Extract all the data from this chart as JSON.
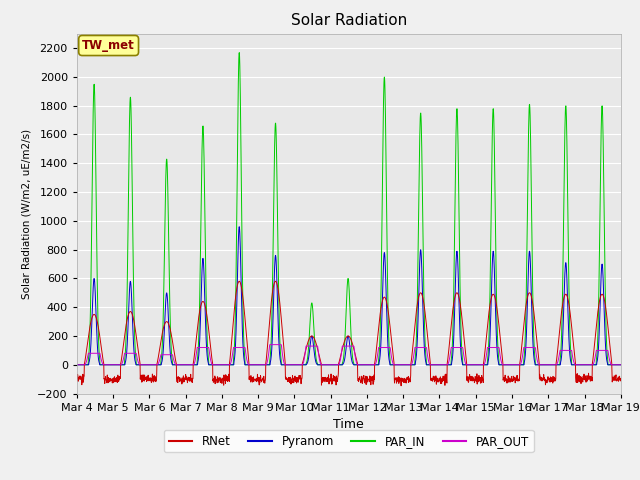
{
  "title": "Solar Radiation",
  "ylabel": "Solar Radiation (W/m2, uE/m2/s)",
  "xlabel": "Time",
  "ylim": [
    -200,
    2300
  ],
  "yticks": [
    -200,
    0,
    200,
    400,
    600,
    800,
    1000,
    1200,
    1400,
    1600,
    1800,
    2000,
    2200
  ],
  "station_label": "TW_met",
  "station_label_color": "#8B0000",
  "station_label_bg": "#FFFF99",
  "station_label_border": "#8B8000",
  "bg_color": "#E8E8E8",
  "grid_color": "#FFFFFF",
  "fig_bg_color": "#F0F0F0",
  "legend_items": [
    {
      "label": "RNet",
      "color": "#CC0000"
    },
    {
      "label": "Pyranom",
      "color": "#0000CC"
    },
    {
      "label": "PAR_IN",
      "color": "#00CC00"
    },
    {
      "label": "PAR_OUT",
      "color": "#CC00CC"
    }
  ],
  "n_days": 15,
  "day_points": 144,
  "par_in_peaks": [
    1950,
    1860,
    1430,
    1660,
    2170,
    1680,
    430,
    600,
    2000,
    1750,
    1780,
    1780,
    1810,
    1800,
    1800
  ],
  "pyranom_peaks": [
    600,
    580,
    500,
    740,
    960,
    760,
    200,
    200,
    780,
    800,
    790,
    790,
    790,
    710,
    700
  ],
  "rnet_peaks": [
    350,
    370,
    300,
    440,
    580,
    580,
    200,
    200,
    470,
    500,
    500,
    490,
    500,
    490,
    490
  ],
  "par_out_peaks": [
    80,
    80,
    70,
    120,
    120,
    140,
    130,
    130,
    120,
    120,
    120,
    120,
    120,
    100,
    100
  ],
  "rnet_neg": -100,
  "x_tick_labels": [
    "Mar 4",
    "Mar 5",
    "Mar 6",
    "Mar 7",
    "Mar 8",
    "Mar 9",
    "Mar 10",
    "Mar 11",
    "Mar 12",
    "Mar 13",
    "Mar 14",
    "Mar 15",
    "Mar 16",
    "Mar 17",
    "Mar 18",
    "Mar 19"
  ]
}
